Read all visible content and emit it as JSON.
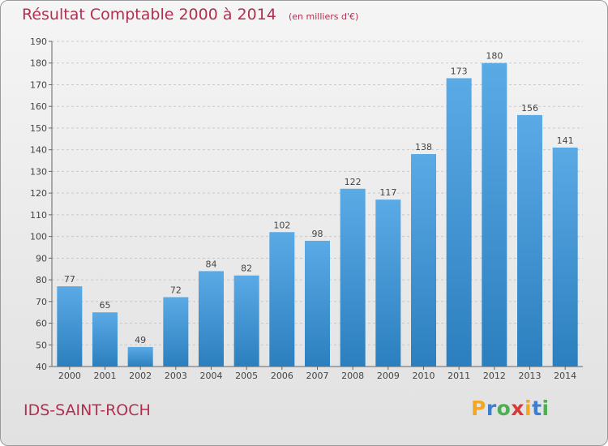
{
  "title": "Résultat Comptable 2000 à 2014",
  "subtitle": "(en milliers d'€)",
  "commune": "IDS-SAINT-ROCH",
  "logo": {
    "text": "Proxiti",
    "letters": [
      "P",
      "r",
      "o",
      "x",
      "i",
      "t",
      "i"
    ],
    "colors": [
      "#f5a623",
      "#3c7fd0",
      "#4caf50",
      "#d83a3a",
      "#f5a623",
      "#3c7fd0",
      "#4caf50"
    ]
  },
  "colors": {
    "bar_top": "#5aaae6",
    "bar_bottom": "#2c7fbe",
    "accent": "#b03050"
  },
  "chart_data": {
    "type": "bar",
    "categories": [
      "2000",
      "2001",
      "2002",
      "2003",
      "2004",
      "2005",
      "2006",
      "2007",
      "2008",
      "2009",
      "2010",
      "2011",
      "2012",
      "2013",
      "2014"
    ],
    "values": [
      77,
      65,
      49,
      72,
      84,
      82,
      102,
      98,
      122,
      117,
      138,
      173,
      180,
      156,
      141
    ],
    "ylim": [
      40,
      190
    ],
    "yticks": [
      40,
      50,
      60,
      70,
      80,
      90,
      100,
      110,
      120,
      130,
      140,
      150,
      160,
      170,
      180,
      190
    ],
    "grid": true,
    "xlabel": "",
    "ylabel": ""
  }
}
